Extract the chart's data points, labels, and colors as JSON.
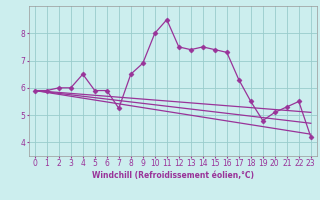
{
  "title": "",
  "xlabel": "Windchill (Refroidissement éolien,°C)",
  "bg_color": "#cceeee",
  "line_color": "#993399",
  "grid_color": "#99cccc",
  "xlim": [
    -0.5,
    23.5
  ],
  "ylim": [
    3.5,
    9.0
  ],
  "xticks": [
    0,
    1,
    2,
    3,
    4,
    5,
    6,
    7,
    8,
    9,
    10,
    11,
    12,
    13,
    14,
    15,
    16,
    17,
    18,
    19,
    20,
    21,
    22,
    23
  ],
  "yticks": [
    4,
    5,
    6,
    7,
    8
  ],
  "series_main": {
    "x": [
      0,
      1,
      2,
      3,
      4,
      5,
      6,
      7,
      8,
      9,
      10,
      11,
      12,
      13,
      14,
      15,
      16,
      17,
      18,
      19,
      20,
      21,
      22,
      23
    ],
    "y": [
      5.9,
      5.9,
      6.0,
      6.0,
      6.5,
      5.9,
      5.9,
      5.25,
      6.5,
      6.9,
      8.0,
      8.5,
      7.5,
      7.4,
      7.5,
      7.4,
      7.3,
      6.3,
      5.5,
      4.8,
      5.1,
      5.3,
      5.5,
      4.2
    ]
  },
  "series_lines": [
    {
      "x": [
        0,
        23
      ],
      "y": [
        5.9,
        5.1
      ]
    },
    {
      "x": [
        0,
        23
      ],
      "y": [
        5.9,
        4.7
      ]
    },
    {
      "x": [
        0,
        23
      ],
      "y": [
        5.9,
        4.3
      ]
    }
  ],
  "marker": "D",
  "marker_size": 2.5,
  "line_width": 0.9,
  "tick_fontsize": 5.5,
  "xlabel_fontsize": 5.5
}
